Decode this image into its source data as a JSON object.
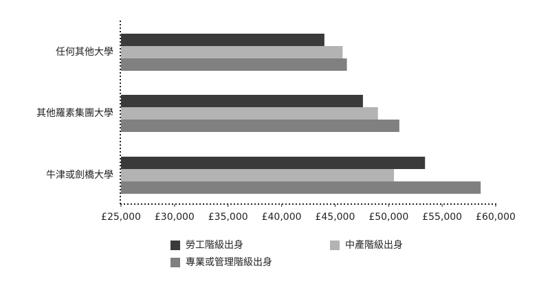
{
  "chart_data": {
    "type": "hbar",
    "categories": [
      "任何其他大學",
      "其他羅素集團大學",
      "牛津或劍橋大學"
    ],
    "series": [
      {
        "name": "勞工階級出身",
        "color": "#3a3a3a",
        "values": [
          44000,
          47600,
          53400
        ]
      },
      {
        "name": "中產階級出身",
        "color": "#b3b3b3",
        "values": [
          45700,
          49000,
          50500
        ]
      },
      {
        "name": "專業或管理階級出身",
        "color": "#808080",
        "values": [
          46100,
          51000,
          58600
        ]
      }
    ],
    "xlim": [
      25000,
      60000
    ],
    "xticks": [
      {
        "value": 25000,
        "label": "£25,000"
      },
      {
        "value": 30000,
        "label": "£30,000"
      },
      {
        "value": 35000,
        "label": "£35,000"
      },
      {
        "value": 40000,
        "label": "£40,000"
      },
      {
        "value": 45000,
        "label": "£45,000"
      },
      {
        "value": 50000,
        "label": "£50,000"
      },
      {
        "value": 55000,
        "label": "£55,000"
      },
      {
        "value": 60000,
        "label": "£60,000"
      }
    ],
    "grid": false
  }
}
